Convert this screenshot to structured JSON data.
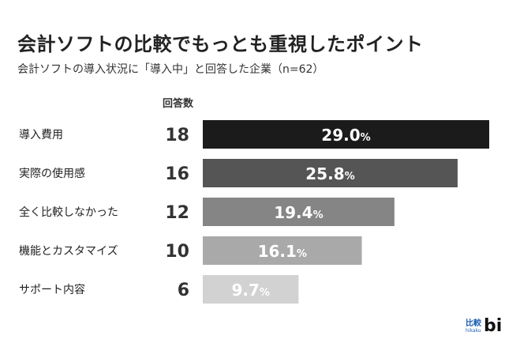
{
  "chart_data": {
    "type": "bar",
    "orientation": "horizontal",
    "title": "会計ソフトの比較でもっとも重視したポイント",
    "subtitle": "会計ソフトの導入状況に「導入中」と回答した企業（n=62）",
    "count_header": "回答数",
    "categories": [
      "導入費用",
      "実際の使用感",
      "全く比較しなかった",
      "機能とカスタマイズ",
      "サポート内容"
    ],
    "counts": [
      18,
      16,
      12,
      10,
      6
    ],
    "values": [
      29.0,
      25.8,
      19.4,
      16.1,
      9.7
    ],
    "value_labels": [
      "29.0",
      "25.8",
      "19.4",
      "16.1",
      "9.7"
    ],
    "unit": "%",
    "colors": [
      "#1b1b1b",
      "#555555",
      "#858585",
      "#a9a9a9",
      "#d2d2d2"
    ],
    "xlim": [
      0,
      29.0
    ],
    "grid": false
  },
  "logo": {
    "jp": "比較",
    "romaji": "hikaku",
    "bi": "bi"
  }
}
